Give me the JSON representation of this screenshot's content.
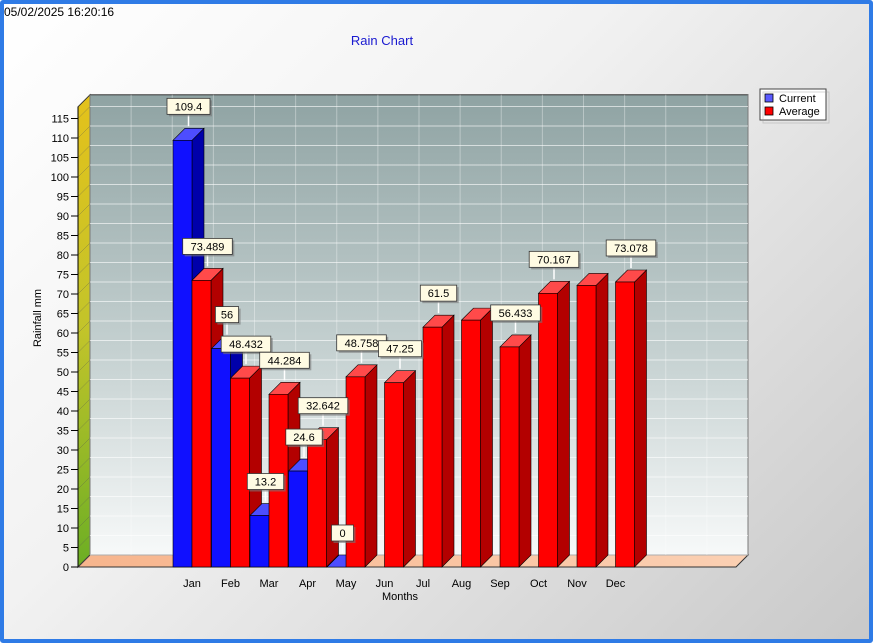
{
  "timestamp": "05/02/2025 16:20:16",
  "colors": {
    "current": "#1010ff",
    "average": "#ff0000",
    "frame": "#2f7be6",
    "title": "#1a1ad0"
  },
  "chart_data": {
    "type": "bar",
    "title": "Rain Chart",
    "xlabel": "Months",
    "ylabel": "Rainfall mm",
    "ylim": [
      0,
      118
    ],
    "yticks": [
      0,
      5,
      10,
      15,
      20,
      25,
      30,
      35,
      40,
      45,
      50,
      55,
      60,
      65,
      70,
      75,
      80,
      85,
      90,
      95,
      100,
      105,
      110,
      115
    ],
    "categories": [
      "Jan",
      "Feb",
      "Mar",
      "Apr",
      "May",
      "Jun",
      "Jul",
      "Aug",
      "Sep",
      "Oct",
      "Nov",
      "Dec"
    ],
    "series": [
      {
        "name": "Current",
        "values": [
          109.4,
          56,
          13.2,
          24.6,
          0,
          null,
          null,
          null,
          null,
          null,
          null,
          null
        ],
        "labels": [
          "109.4",
          "56",
          "13.2",
          "24.6",
          "0",
          "",
          "",
          "",
          "",
          "",
          "",
          ""
        ]
      },
      {
        "name": "Average",
        "values": [
          73.489,
          48.432,
          44.284,
          32.642,
          48.758,
          47.25,
          61.5,
          63.3,
          56.433,
          70.167,
          72.2,
          73.078
        ],
        "labels": [
          "73.489",
          "48.432",
          "44.284",
          "32.642",
          "48.758",
          "47.25",
          "61.5",
          "",
          "56.433",
          "70.167",
          "",
          "73.078"
        ]
      }
    ],
    "legend_position": "top-right",
    "grid": true
  }
}
